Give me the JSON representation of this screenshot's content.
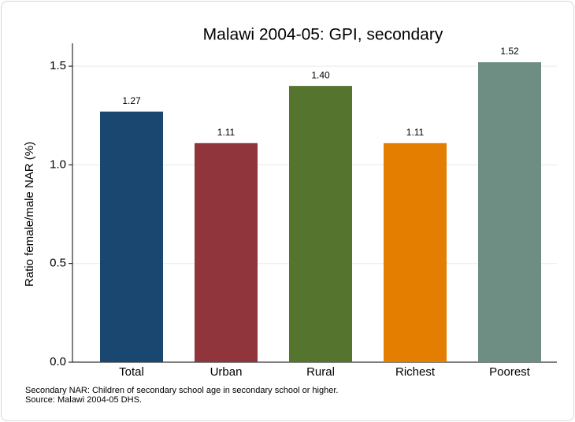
{
  "chart_data": {
    "type": "bar",
    "title": "Malawi 2004-05: GPI, secondary",
    "y_label": "Ratio female/male NAR (%)",
    "categories": [
      "Total",
      "Urban",
      "Rural",
      "Richest",
      "Poorest"
    ],
    "values": [
      1.27,
      1.11,
      1.4,
      1.11,
      1.52
    ],
    "value_labels": [
      "1.27",
      "1.11",
      "1.40",
      "1.11",
      "1.52"
    ],
    "colors": [
      "#1a476f",
      "#90353b",
      "#55752f",
      "#e37e00",
      "#6e8e84"
    ],
    "ylim": [
      0,
      1.6
    ],
    "yticks": [
      {
        "value": 0,
        "label": "0.0"
      },
      {
        "value": 0.5,
        "label": "0.5"
      },
      {
        "value": 1,
        "label": "1.0"
      },
      {
        "value": 1.5,
        "label": "1.5"
      }
    ],
    "grid": true,
    "notes": [
      "Secondary NAR: Children of secondary school age in secondary school or higher.",
      "Source: Malawi 2004-05 DHS."
    ]
  }
}
